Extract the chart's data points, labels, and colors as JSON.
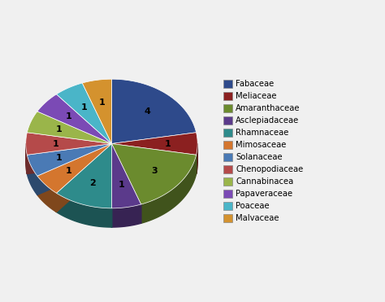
{
  "labels": [
    "Fabaceae",
    "Meliaceae",
    "Amaranthaceae",
    "Asclepiadaceae",
    "Rhamnaceae",
    "Mimosaceae",
    "Solanaceae",
    "Chenopodiaceae",
    "Cannabinacea",
    "Papaveraceae",
    "Poaceae",
    "Malvaceae"
  ],
  "values": [
    4,
    1,
    3,
    1,
    2,
    1,
    1,
    1,
    1,
    1,
    1,
    1
  ],
  "colors": [
    "#2E4A8B",
    "#8B2020",
    "#6B8B2E",
    "#5B3A8B",
    "#2E8B8B",
    "#D4762E",
    "#4A7AB5",
    "#B54A4A",
    "#9AB54A",
    "#7B4AB5",
    "#4AB5C8",
    "#D4922E"
  ],
  "background_color": "#f0f0f0",
  "figsize": [
    4.74,
    3.71
  ],
  "dpi": 100
}
